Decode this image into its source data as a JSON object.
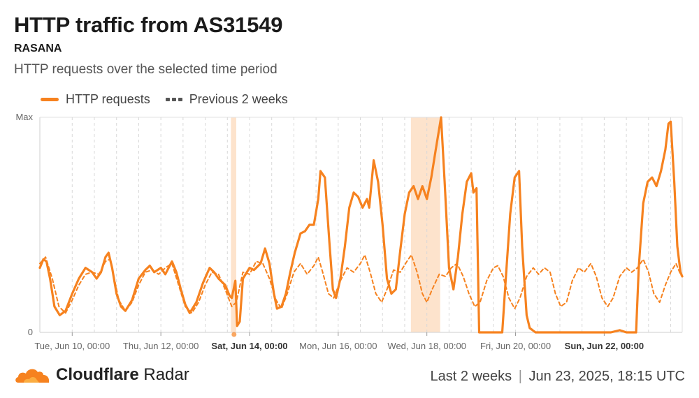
{
  "header": {
    "title": "HTTP traffic from AS31549",
    "subtitle": "RASANA",
    "description": "HTTP requests over the selected time period"
  },
  "legend": {
    "current": "HTTP requests",
    "previous": "Previous 2 weeks"
  },
  "footer": {
    "brand_bold": "Cloudflare",
    "brand_light": "Radar",
    "range": "Last 2 weeks",
    "separator": "|",
    "timestamp": "Jun 23, 2025, 18:15 UTC"
  },
  "colors": {
    "current": "#f6821f",
    "previous": "#f6821f",
    "highlight": "#fde3cc",
    "grid": "#d8d8d8"
  },
  "chart_data": {
    "type": "line",
    "x_unit": "days since Mon, Jun 9, 00:00 UTC",
    "xlim": [
      0.27,
      14.76
    ],
    "ylim": [
      0,
      100
    ],
    "y_ticks": [
      {
        "value": 0,
        "label": "0"
      },
      {
        "value": 100,
        "label": "Max"
      }
    ],
    "x_ticks": [
      {
        "x": 1,
        "label": "Tue, Jun 10, 00:00",
        "bold": false
      },
      {
        "x": 3,
        "label": "Thu, Jun 12, 00:00",
        "bold": false
      },
      {
        "x": 5,
        "label": "Sat, Jun 14, 00:00",
        "bold": true
      },
      {
        "x": 7,
        "label": "Mon, Jun 16, 00:00",
        "bold": false
      },
      {
        "x": 9,
        "label": "Wed, Jun 18, 00:00",
        "bold": false
      },
      {
        "x": 11,
        "label": "Fri, Jun 20, 00:00",
        "bold": false
      },
      {
        "x": 13,
        "label": "Sun, Jun 22, 00:00",
        "bold": true
      }
    ],
    "highlight_ranges": [
      [
        4.58,
        4.7
      ],
      [
        8.64,
        9.3
      ]
    ],
    "markers": [
      {
        "x": 4.65,
        "y": 0
      }
    ],
    "series": [
      {
        "name": "HTTP requests",
        "style": "solid",
        "points": [
          [
            0.27,
            30
          ],
          [
            0.35,
            34
          ],
          [
            0.42,
            33
          ],
          [
            0.5,
            25
          ],
          [
            0.6,
            12
          ],
          [
            0.72,
            8
          ],
          [
            0.85,
            10
          ],
          [
            1.0,
            18
          ],
          [
            1.15,
            25
          ],
          [
            1.3,
            30
          ],
          [
            1.45,
            28
          ],
          [
            1.55,
            25
          ],
          [
            1.65,
            28
          ],
          [
            1.75,
            35
          ],
          [
            1.82,
            37
          ],
          [
            1.9,
            30
          ],
          [
            2.0,
            18
          ],
          [
            2.1,
            12
          ],
          [
            2.2,
            10
          ],
          [
            2.35,
            15
          ],
          [
            2.5,
            25
          ],
          [
            2.65,
            29
          ],
          [
            2.75,
            31
          ],
          [
            2.85,
            28
          ],
          [
            3.0,
            30
          ],
          [
            3.1,
            27
          ],
          [
            3.25,
            33
          ],
          [
            3.35,
            28
          ],
          [
            3.45,
            20
          ],
          [
            3.55,
            13
          ],
          [
            3.65,
            9
          ],
          [
            3.8,
            14
          ],
          [
            3.95,
            23
          ],
          [
            4.1,
            30
          ],
          [
            4.2,
            28
          ],
          [
            4.3,
            25
          ],
          [
            4.45,
            22
          ],
          [
            4.55,
            17
          ],
          [
            4.6,
            16
          ],
          [
            4.68,
            24
          ],
          [
            4.72,
            3
          ],
          [
            4.78,
            5
          ],
          [
            4.85,
            25
          ],
          [
            5.0,
            30
          ],
          [
            5.1,
            29
          ],
          [
            5.25,
            32
          ],
          [
            5.35,
            39
          ],
          [
            5.45,
            32
          ],
          [
            5.55,
            18
          ],
          [
            5.62,
            11
          ],
          [
            5.72,
            12
          ],
          [
            5.82,
            18
          ],
          [
            5.92,
            28
          ],
          [
            6.02,
            37
          ],
          [
            6.15,
            46
          ],
          [
            6.25,
            47
          ],
          [
            6.35,
            50
          ],
          [
            6.45,
            50
          ],
          [
            6.55,
            62
          ],
          [
            6.6,
            75
          ],
          [
            6.7,
            72
          ],
          [
            6.8,
            42
          ],
          [
            6.88,
            20
          ],
          [
            6.95,
            16
          ],
          [
            7.05,
            25
          ],
          [
            7.15,
            40
          ],
          [
            7.25,
            58
          ],
          [
            7.35,
            65
          ],
          [
            7.45,
            63
          ],
          [
            7.55,
            58
          ],
          [
            7.65,
            62
          ],
          [
            7.7,
            58
          ],
          [
            7.8,
            80
          ],
          [
            7.9,
            70
          ],
          [
            8.0,
            50
          ],
          [
            8.1,
            25
          ],
          [
            8.2,
            18
          ],
          [
            8.3,
            20
          ],
          [
            8.4,
            38
          ],
          [
            8.5,
            55
          ],
          [
            8.6,
            65
          ],
          [
            8.7,
            68
          ],
          [
            8.8,
            62
          ],
          [
            8.9,
            68
          ],
          [
            9.0,
            62
          ],
          [
            9.1,
            72
          ],
          [
            9.2,
            85
          ],
          [
            9.32,
            100
          ],
          [
            9.4,
            70
          ],
          [
            9.5,
            30
          ],
          [
            9.6,
            20
          ],
          [
            9.7,
            35
          ],
          [
            9.8,
            55
          ],
          [
            9.9,
            70
          ],
          [
            10.0,
            74
          ],
          [
            10.05,
            65
          ],
          [
            10.12,
            67
          ],
          [
            10.18,
            0
          ],
          [
            10.7,
            0
          ],
          [
            10.78,
            25
          ],
          [
            10.88,
            55
          ],
          [
            10.98,
            72
          ],
          [
            11.08,
            75
          ],
          [
            11.15,
            40
          ],
          [
            11.25,
            8
          ],
          [
            11.32,
            2
          ],
          [
            11.45,
            0
          ],
          [
            12.5,
            0
          ],
          [
            13.0,
            0
          ],
          [
            13.15,
            0
          ],
          [
            13.35,
            1
          ],
          [
            13.5,
            0
          ],
          [
            13.72,
            0
          ],
          [
            13.78,
            30
          ],
          [
            13.88,
            60
          ],
          [
            13.98,
            70
          ],
          [
            14.08,
            72
          ],
          [
            14.18,
            68
          ],
          [
            14.28,
            75
          ],
          [
            14.38,
            85
          ],
          [
            14.45,
            97
          ],
          [
            14.5,
            98
          ],
          [
            14.58,
            70
          ],
          [
            14.65,
            40
          ],
          [
            14.72,
            28
          ],
          [
            14.76,
            26
          ]
        ]
      },
      {
        "name": "Previous 2 weeks",
        "style": "dashed",
        "points": [
          [
            0.27,
            32
          ],
          [
            0.4,
            35
          ],
          [
            0.55,
            25
          ],
          [
            0.7,
            12
          ],
          [
            0.85,
            9
          ],
          [
            1.0,
            15
          ],
          [
            1.15,
            22
          ],
          [
            1.3,
            27
          ],
          [
            1.45,
            28
          ],
          [
            1.6,
            27
          ],
          [
            1.75,
            33
          ],
          [
            1.85,
            34
          ],
          [
            1.95,
            25
          ],
          [
            2.05,
            15
          ],
          [
            2.2,
            10
          ],
          [
            2.35,
            14
          ],
          [
            2.5,
            22
          ],
          [
            2.65,
            28
          ],
          [
            2.8,
            29
          ],
          [
            2.95,
            27
          ],
          [
            3.1,
            30
          ],
          [
            3.25,
            32
          ],
          [
            3.4,
            22
          ],
          [
            3.55,
            12
          ],
          [
            3.7,
            9
          ],
          [
            3.85,
            14
          ],
          [
            4.0,
            22
          ],
          [
            4.15,
            28
          ],
          [
            4.3,
            27
          ],
          [
            4.45,
            20
          ],
          [
            4.6,
            12
          ],
          [
            4.7,
            14
          ],
          [
            4.85,
            28
          ],
          [
            5.0,
            27
          ],
          [
            5.15,
            33
          ],
          [
            5.3,
            32
          ],
          [
            5.45,
            25
          ],
          [
            5.6,
            15
          ],
          [
            5.72,
            11
          ],
          [
            5.85,
            18
          ],
          [
            6.0,
            28
          ],
          [
            6.15,
            32
          ],
          [
            6.3,
            27
          ],
          [
            6.45,
            31
          ],
          [
            6.55,
            35
          ],
          [
            6.65,
            28
          ],
          [
            6.78,
            18
          ],
          [
            6.9,
            16
          ],
          [
            7.05,
            24
          ],
          [
            7.2,
            30
          ],
          [
            7.35,
            28
          ],
          [
            7.5,
            32
          ],
          [
            7.6,
            36
          ],
          [
            7.72,
            28
          ],
          [
            7.85,
            18
          ],
          [
            7.98,
            14
          ],
          [
            8.1,
            20
          ],
          [
            8.25,
            29
          ],
          [
            8.4,
            28
          ],
          [
            8.55,
            33
          ],
          [
            8.65,
            36
          ],
          [
            8.78,
            28
          ],
          [
            8.9,
            18
          ],
          [
            9.0,
            14
          ],
          [
            9.12,
            20
          ],
          [
            9.28,
            27
          ],
          [
            9.42,
            26
          ],
          [
            9.55,
            30
          ],
          [
            9.68,
            32
          ],
          [
            9.82,
            26
          ],
          [
            9.95,
            18
          ],
          [
            10.08,
            12
          ],
          [
            10.2,
            14
          ],
          [
            10.35,
            24
          ],
          [
            10.5,
            30
          ],
          [
            10.6,
            31
          ],
          [
            10.72,
            26
          ],
          [
            10.85,
            16
          ],
          [
            10.98,
            11
          ],
          [
            11.1,
            16
          ],
          [
            11.25,
            26
          ],
          [
            11.4,
            30
          ],
          [
            11.52,
            27
          ],
          [
            11.65,
            30
          ],
          [
            11.78,
            28
          ],
          [
            11.9,
            18
          ],
          [
            12.02,
            12
          ],
          [
            12.15,
            14
          ],
          [
            12.28,
            24
          ],
          [
            12.42,
            30
          ],
          [
            12.55,
            28
          ],
          [
            12.7,
            32
          ],
          [
            12.82,
            26
          ],
          [
            12.95,
            16
          ],
          [
            13.08,
            12
          ],
          [
            13.2,
            16
          ],
          [
            13.35,
            26
          ],
          [
            13.5,
            30
          ],
          [
            13.62,
            28
          ],
          [
            13.75,
            30
          ],
          [
            13.88,
            34
          ],
          [
            14.0,
            28
          ],
          [
            14.12,
            18
          ],
          [
            14.25,
            14
          ],
          [
            14.38,
            22
          ],
          [
            14.5,
            28
          ],
          [
            14.62,
            32
          ],
          [
            14.72,
            27
          ],
          [
            14.76,
            26
          ]
        ]
      }
    ]
  }
}
